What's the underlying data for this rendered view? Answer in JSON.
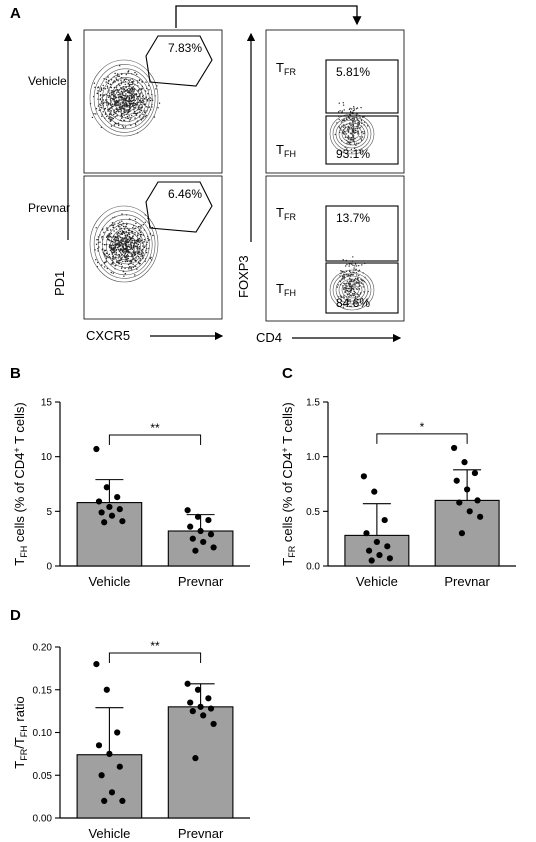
{
  "panels": {
    "A": {
      "letter": "A",
      "samples": [
        "Vehicle",
        "Prevnar"
      ],
      "left_xlabel": "CXCR5",
      "left_ylabel": "PD1",
      "right_xlabel": "CD4",
      "right_ylabel": "FOXP3",
      "gate_pd1_cxcr5": [
        "7.83%",
        "6.46%"
      ],
      "tfr_label_main": "T",
      "tfr_label_sub": "FR",
      "tfh_label_main": "T",
      "tfh_label_sub": "FH",
      "tfr_pct": [
        "5.81%",
        "13.7%"
      ],
      "tfh_pct": [
        "93.1%",
        "84.6%"
      ]
    },
    "B": {
      "letter": "B"
    },
    "C": {
      "letter": "C"
    },
    "D": {
      "letter": "D"
    }
  },
  "chart_data": [
    {
      "id": "B",
      "type": "bar",
      "categories": [
        "Vehicle",
        "Prevnar"
      ],
      "values": [
        5.8,
        3.2
      ],
      "error_sd": [
        2.1,
        1.5
      ],
      "points": [
        [
          10.7,
          7.2,
          6.3,
          5.9,
          5.4,
          5.2,
          4.9,
          4.6,
          4.1,
          4.0
        ],
        [
          5.1,
          4.5,
          4.2,
          3.6,
          3.2,
          2.9,
          2.5,
          2.2,
          1.7,
          1.4
        ]
      ],
      "ylabel_main": "T",
      "ylabel_sub": "FH",
      "ylabel_rest": " cells (% of CD4",
      "ylabel_sup": "+",
      "ylabel_end": " T cells)",
      "ylim": [
        0,
        15
      ],
      "yticks": [
        0,
        5,
        10,
        15
      ],
      "ytick_labels": [
        "0",
        "5",
        "10",
        "15"
      ],
      "significance": "**"
    },
    {
      "id": "C",
      "type": "bar",
      "categories": [
        "Vehicle",
        "Prevnar"
      ],
      "values": [
        0.28,
        0.6
      ],
      "error_sd": [
        0.29,
        0.28
      ],
      "points": [
        [
          0.82,
          0.68,
          0.42,
          0.3,
          0.22,
          0.18,
          0.14,
          0.1,
          0.07,
          0.05
        ],
        [
          1.08,
          0.95,
          0.85,
          0.78,
          0.7,
          0.6,
          0.58,
          0.5,
          0.45,
          0.3
        ]
      ],
      "ylabel_main": "T",
      "ylabel_sub": "FR",
      "ylabel_rest": " cells (% of CD4",
      "ylabel_sup": "+",
      "ylabel_end": " T cells)",
      "ylim": [
        0,
        1.5
      ],
      "yticks": [
        0,
        0.5,
        1.0,
        1.5
      ],
      "ytick_labels": [
        "0.0",
        "0.5",
        "1.0",
        "1.5"
      ],
      "significance": "*"
    },
    {
      "id": "D",
      "type": "bar",
      "categories": [
        "Vehicle",
        "Prevnar"
      ],
      "values": [
        0.074,
        0.13
      ],
      "error_sd": [
        0.055,
        0.027
      ],
      "points": [
        [
          0.18,
          0.15,
          0.1,
          0.085,
          0.075,
          0.06,
          0.05,
          0.03,
          0.02,
          0.02
        ],
        [
          0.157,
          0.15,
          0.14,
          0.135,
          0.13,
          0.128,
          0.125,
          0.12,
          0.11,
          0.07
        ]
      ],
      "ylabel_main": "T",
      "ylabel_sub": "FR",
      "ylabel_rest": "/T",
      "ylabel_sub2": "FH",
      "ylabel_end": " ratio",
      "ylim": [
        0,
        0.2
      ],
      "yticks": [
        0,
        0.05,
        0.1,
        0.15,
        0.2
      ],
      "ytick_labels": [
        "0.00",
        "0.05",
        "0.10",
        "0.15",
        "0.20"
      ],
      "significance": "**"
    }
  ],
  "colors": {
    "bar": "#a0a0a0",
    "axis": "#000000",
    "point": "#000000"
  }
}
